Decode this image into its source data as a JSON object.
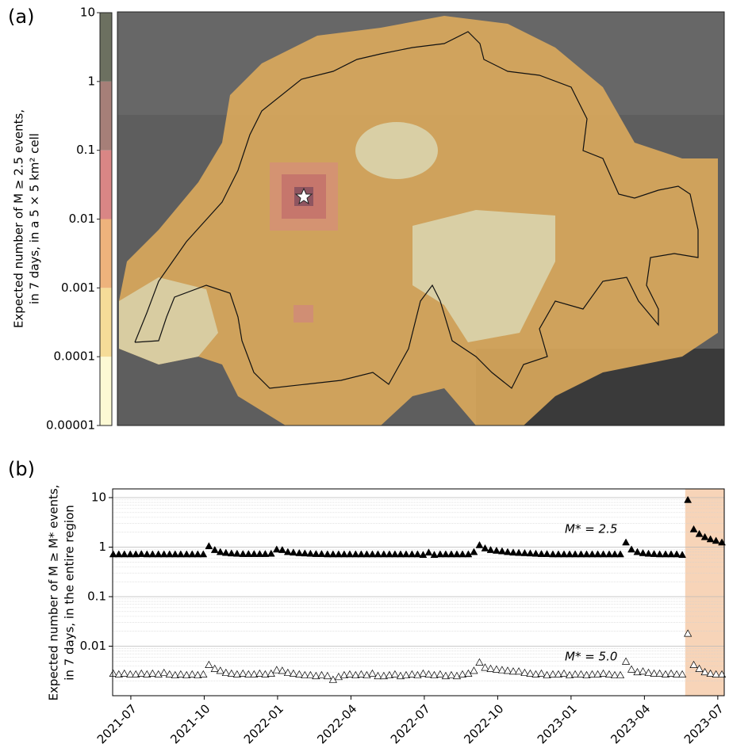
{
  "chart_data": [
    {
      "type": "map",
      "panel": "(a)",
      "ylabel": [
        "Expected number of M ≥ 2.5 events,",
        "in 7 days, in a 5 × 5 km² cell"
      ],
      "colorbar": {
        "ticks": [
          1e-05,
          0.0001,
          0.001,
          0.01,
          0.1,
          1,
          10
        ],
        "colors": [
          "#fcf9d4",
          "#f5dc98",
          "#eeb37c",
          "#d98685",
          "#a67f78",
          "#6c7060"
        ],
        "log_scale": true
      }
    },
    {
      "type": "scatter",
      "panel": "(b)",
      "ylabel": [
        "Expected number of M ≥ M* events,",
        "in 7 days, in the entire region"
      ],
      "log_scale": true,
      "grid": true,
      "xlim": [
        2021.438,
        2023.522
      ],
      "xticks": [
        {
          "value": 2021.5,
          "label": "2021-07"
        },
        {
          "value": 2021.75,
          "label": "2021-10"
        },
        {
          "value": 2022.0,
          "label": "2022-01"
        },
        {
          "value": 2022.25,
          "label": "2022-04"
        },
        {
          "value": 2022.5,
          "label": "2022-07"
        },
        {
          "value": 2022.75,
          "label": "2022-10"
        },
        {
          "value": 2023.0,
          "label": "2023-01"
        },
        {
          "value": 2023.25,
          "label": "2023-04"
        },
        {
          "value": 2023.5,
          "label": "2023-07"
        }
      ],
      "ylim": [
        0.001,
        15
      ],
      "yticks": [
        0.01,
        0.1,
        1,
        10
      ],
      "shade": {
        "from": 2023.389,
        "color": "#f7d4b8"
      },
      "annotations": [
        "M* = 2.5",
        "M* = 5.0"
      ],
      "x": [
        2021.44,
        2021.459,
        2021.478,
        2021.498,
        2021.517,
        2021.536,
        2021.555,
        2021.574,
        2021.594,
        2021.613,
        2021.632,
        2021.651,
        2021.67,
        2021.69,
        2021.709,
        2021.728,
        2021.747,
        2021.766,
        2021.786,
        2021.805,
        2021.824,
        2021.843,
        2021.862,
        2021.882,
        2021.901,
        2021.92,
        2021.939,
        2021.958,
        2021.978,
        2021.997,
        2022.016,
        2022.035,
        2022.054,
        2022.074,
        2022.093,
        2022.112,
        2022.131,
        2022.15,
        2022.17,
        2022.189,
        2022.208,
        2022.227,
        2022.246,
        2022.266,
        2022.285,
        2022.304,
        2022.323,
        2022.342,
        2022.362,
        2022.381,
        2022.4,
        2022.419,
        2022.438,
        2022.458,
        2022.477,
        2022.496,
        2022.515,
        2022.534,
        2022.554,
        2022.573,
        2022.592,
        2022.611,
        2022.63,
        2022.65,
        2022.669,
        2022.688,
        2022.707,
        2022.726,
        2022.746,
        2022.765,
        2022.784,
        2022.803,
        2022.822,
        2022.842,
        2022.861,
        2022.88,
        2022.899,
        2022.918,
        2022.938,
        2022.957,
        2022.976,
        2022.995,
        2023.014,
        2023.034,
        2023.053,
        2023.072,
        2023.091,
        2023.11,
        2023.13,
        2023.149,
        2023.168,
        2023.187,
        2023.206,
        2023.226,
        2023.245,
        2023.264,
        2023.283,
        2023.302,
        2023.322,
        2023.341,
        2023.36,
        2023.379,
        2023.398,
        2023.418,
        2023.437,
        2023.456,
        2023.475,
        2023.494,
        2023.514
      ],
      "series": [
        {
          "color": "#000000",
          "filled": true,
          "values": [
            0.72,
            0.72,
            0.72,
            0.72,
            0.72,
            0.73,
            0.72,
            0.72,
            0.72,
            0.72,
            0.72,
            0.72,
            0.72,
            0.72,
            0.72,
            0.72,
            0.72,
            1.05,
            0.88,
            0.8,
            0.77,
            0.75,
            0.74,
            0.73,
            0.73,
            0.73,
            0.73,
            0.73,
            0.74,
            0.9,
            0.88,
            0.8,
            0.78,
            0.76,
            0.75,
            0.74,
            0.73,
            0.73,
            0.72,
            0.72,
            0.72,
            0.72,
            0.72,
            0.72,
            0.72,
            0.72,
            0.72,
            0.72,
            0.72,
            0.72,
            0.72,
            0.72,
            0.72,
            0.72,
            0.72,
            0.7,
            0.78,
            0.7,
            0.72,
            0.72,
            0.72,
            0.72,
            0.72,
            0.72,
            0.8,
            1.1,
            0.95,
            0.88,
            0.85,
            0.83,
            0.8,
            0.78,
            0.77,
            0.76,
            0.75,
            0.74,
            0.73,
            0.73,
            0.72,
            0.72,
            0.72,
            0.72,
            0.72,
            0.72,
            0.72,
            0.72,
            0.72,
            0.72,
            0.72,
            0.72,
            0.72,
            1.25,
            0.9,
            0.8,
            0.76,
            0.74,
            0.73,
            0.72,
            0.72,
            0.72,
            0.72,
            0.7,
            9,
            2.3,
            1.85,
            1.6,
            1.45,
            1.35,
            1.25
          ]
        },
        {
          "color": "#000000",
          "filled": false,
          "values": [
            0.0028,
            0.0027,
            0.0028,
            0.0027,
            0.0027,
            0.0028,
            0.0027,
            0.0028,
            0.0027,
            0.0029,
            0.0027,
            0.0026,
            0.0027,
            0.0026,
            0.0027,
            0.0026,
            0.0027,
            0.0042,
            0.0035,
            0.0032,
            0.0029,
            0.0028,
            0.0027,
            0.0028,
            0.0027,
            0.0027,
            0.0028,
            0.0027,
            0.0028,
            0.0033,
            0.0032,
            0.0029,
            0.0028,
            0.0027,
            0.0026,
            0.0026,
            0.0025,
            0.0026,
            0.0025,
            0.0021,
            0.0024,
            0.0026,
            0.0027,
            0.0026,
            0.0027,
            0.0026,
            0.0028,
            0.0025,
            0.0025,
            0.0026,
            0.0027,
            0.0025,
            0.0026,
            0.0027,
            0.0026,
            0.0028,
            0.0027,
            0.0026,
            0.0027,
            0.0025,
            0.0026,
            0.0025,
            0.0027,
            0.0028,
            0.0032,
            0.0047,
            0.0037,
            0.0035,
            0.0034,
            0.0033,
            0.0032,
            0.0031,
            0.0031,
            0.0029,
            0.0028,
            0.0027,
            0.0028,
            0.0026,
            0.0027,
            0.0027,
            0.0028,
            0.0026,
            0.0027,
            0.0027,
            0.0026,
            0.0027,
            0.0027,
            0.0028,
            0.0027,
            0.0026,
            0.0026,
            0.0049,
            0.0034,
            0.003,
            0.0031,
            0.0029,
            0.0028,
            0.0028,
            0.0027,
            0.0028,
            0.0027,
            0.0027,
            0.018,
            0.0042,
            0.0035,
            0.003,
            0.0028,
            0.0027,
            0.0027
          ]
        }
      ]
    }
  ]
}
